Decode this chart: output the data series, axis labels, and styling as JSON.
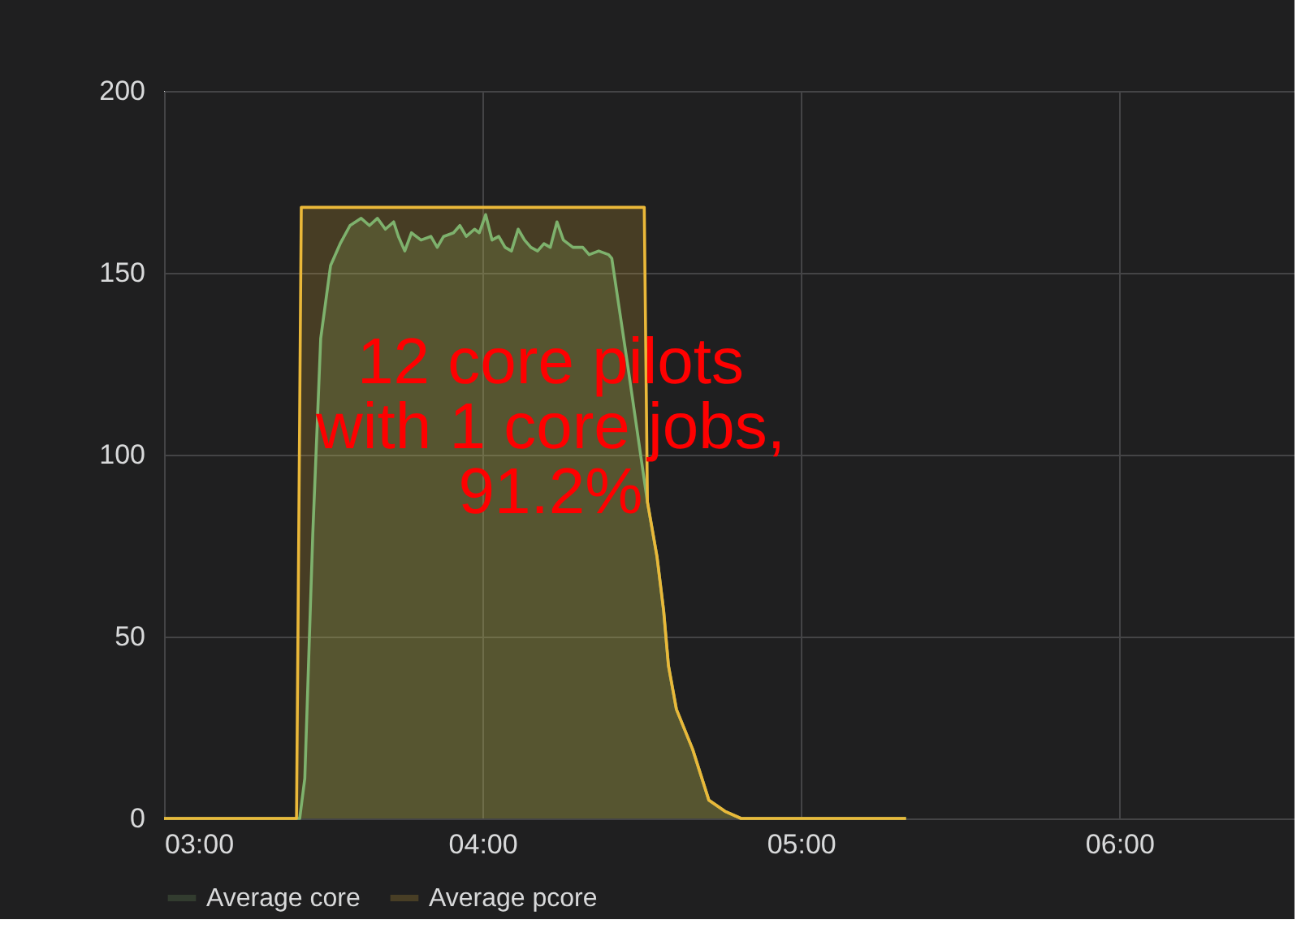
{
  "chart_data": {
    "type": "area",
    "annotations": [
      "12 core pilots\nwith 1 core jobs,\n91.2%"
    ],
    "series": [
      {
        "name": "Average core",
        "color": "#7eb26d",
        "x": [
          3.0,
          3.426,
          3.442,
          3.467,
          3.492,
          3.523,
          3.553,
          3.584,
          3.619,
          3.645,
          3.67,
          3.695,
          3.721,
          3.736,
          3.756,
          3.777,
          3.807,
          3.838,
          3.858,
          3.878,
          3.909,
          3.929,
          3.949,
          3.975,
          3.99,
          4.01,
          4.03,
          4.051,
          4.071,
          4.091,
          4.112,
          4.132,
          4.152,
          4.173,
          4.193,
          4.213,
          4.234,
          4.254,
          4.284,
          4.315,
          4.335,
          4.365,
          4.396,
          4.406,
          4.457,
          4.518,
          4.548,
          4.569,
          4.584,
          4.609,
          4.66,
          4.711,
          4.761,
          4.812,
          5.33
        ],
        "values": [
          0,
          0,
          11,
          78,
          132,
          152,
          158,
          163,
          165,
          163,
          165,
          162,
          164,
          160,
          156,
          161,
          159,
          160,
          157,
          160,
          161,
          163,
          160,
          162,
          161,
          166,
          159,
          160,
          157,
          156,
          162,
          159,
          157,
          156,
          158,
          157,
          164,
          159,
          157,
          157,
          155,
          156,
          155,
          154,
          124,
          87,
          72,
          57,
          42,
          30,
          19,
          5,
          2,
          0,
          0
        ]
      },
      {
        "name": "Average pcore",
        "color": "#eab839",
        "x": [
          3.0,
          3.416,
          3.431,
          4.508,
          4.518,
          4.548,
          4.569,
          4.584,
          4.609,
          4.66,
          4.711,
          4.761,
          4.812,
          5.33
        ],
        "values": [
          0,
          0,
          168,
          168,
          87,
          72,
          57,
          42,
          30,
          19,
          5,
          2,
          0,
          0
        ]
      }
    ],
    "xlim": [
      3,
      6.55
    ],
    "xticks": [
      {
        "value": 3,
        "label": "03:00"
      },
      {
        "value": 4,
        "label": "04:00"
      },
      {
        "value": 5,
        "label": "05:00"
      },
      {
        "value": 6,
        "label": "06:00"
      }
    ],
    "ylim": [
      0,
      200
    ],
    "yticks": [
      0,
      50,
      100,
      150,
      200
    ],
    "grid": true,
    "legend": "bottom",
    "marker": "none",
    "line_style": "solid"
  }
}
